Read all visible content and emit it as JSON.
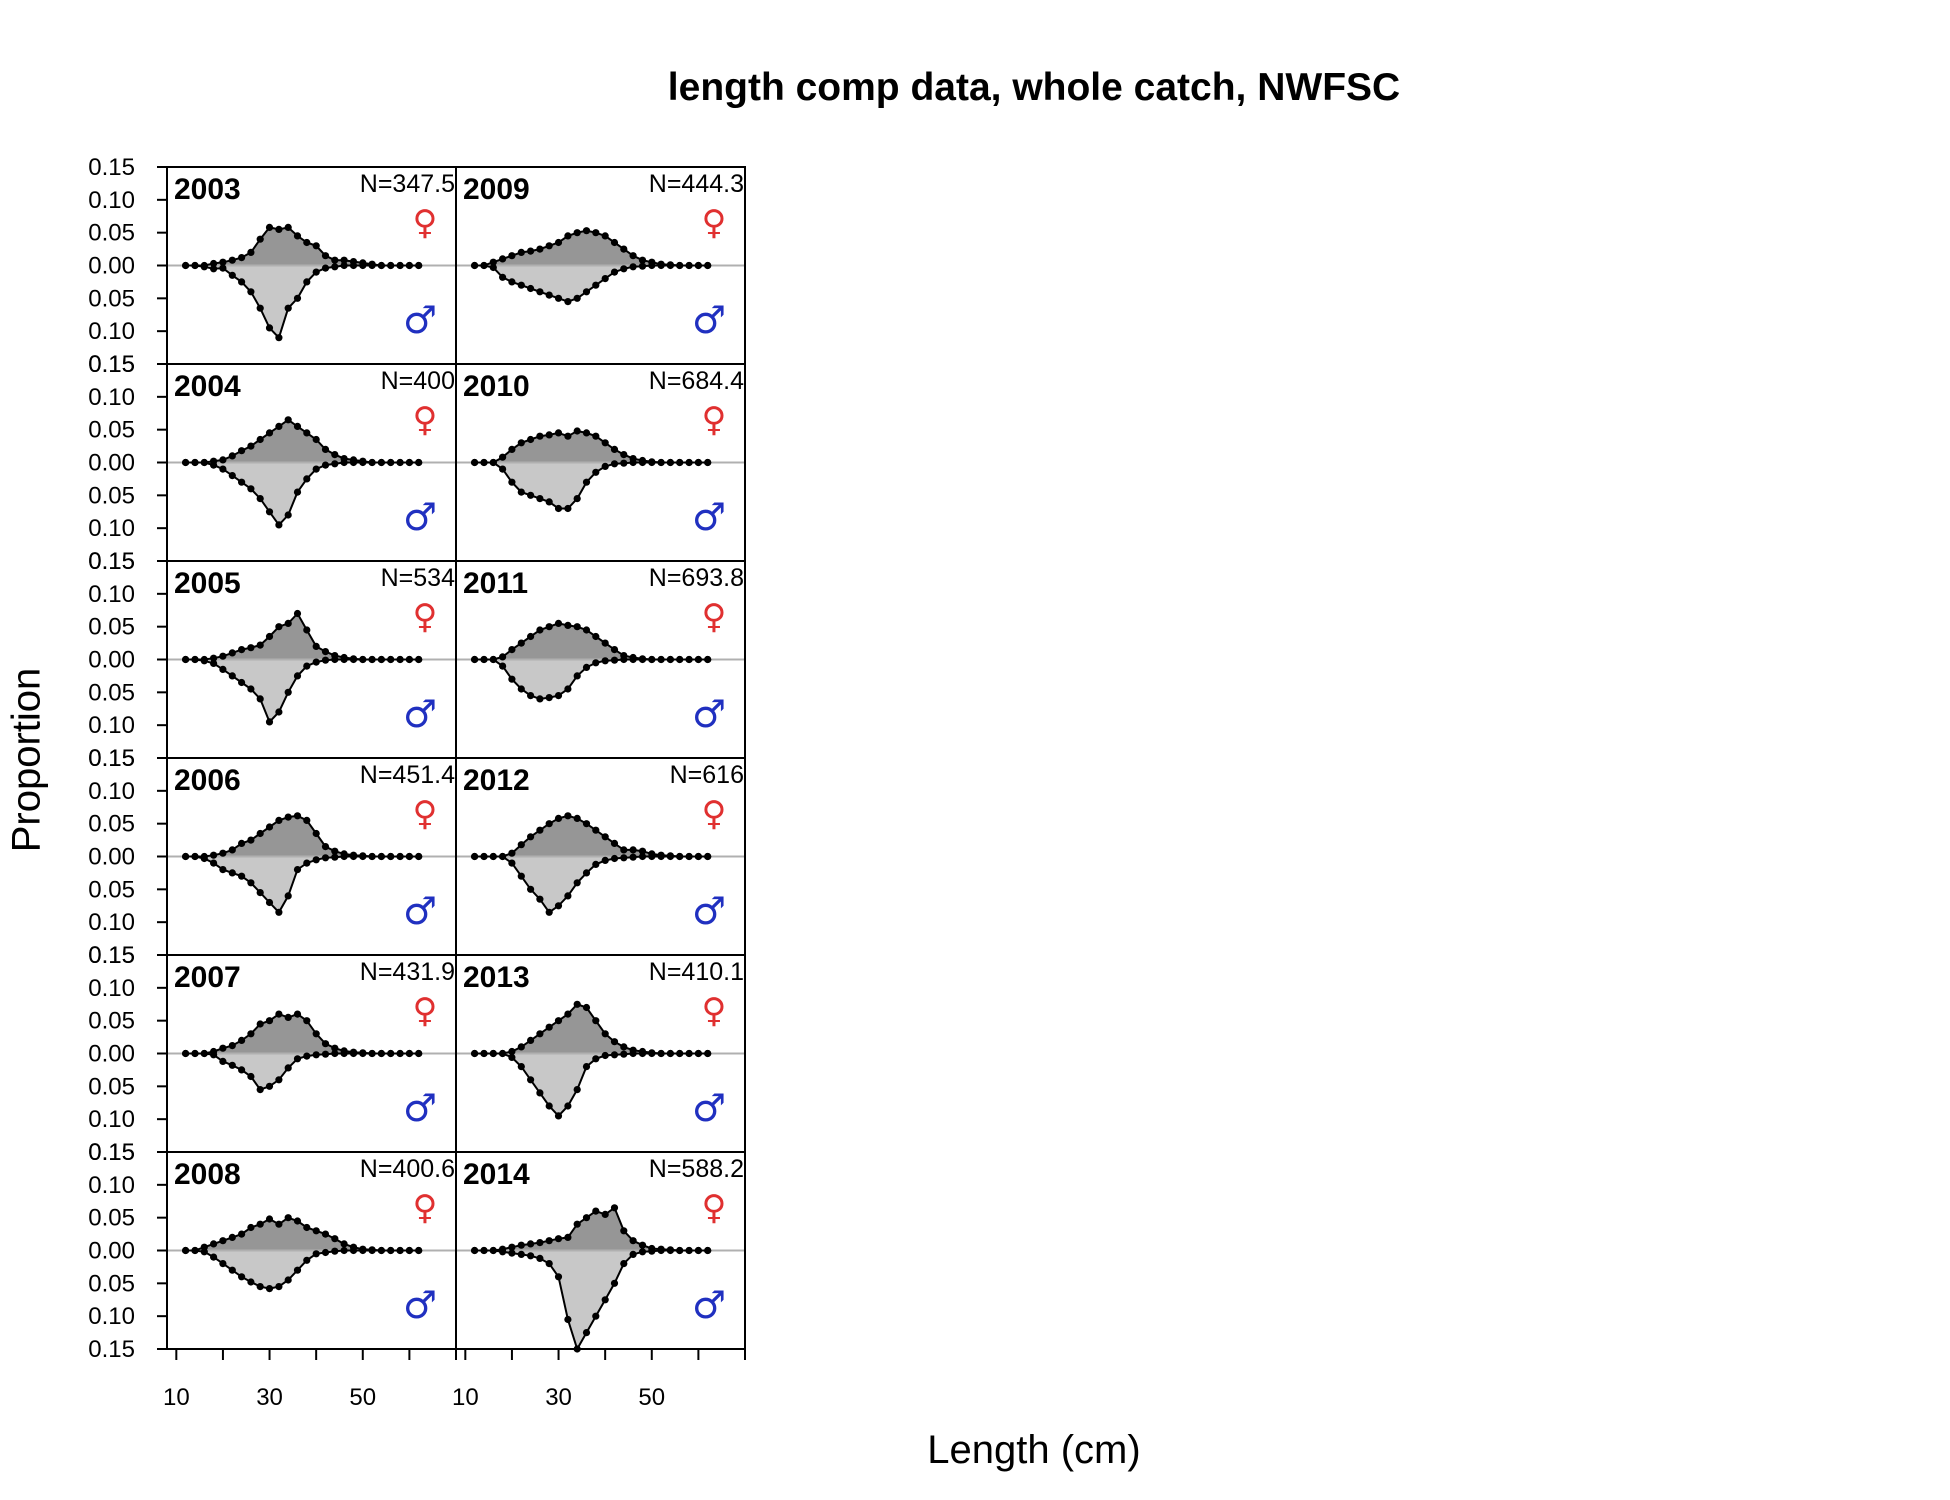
{
  "chart_data": {
    "type": "area",
    "title": "length comp data, whole catch, NWFSC",
    "xlabel": "Length (cm)",
    "ylabel": "Proportion",
    "x_axis": {
      "range": [
        8,
        70
      ],
      "ticks": [
        10,
        20,
        30,
        40,
        50,
        60,
        70
      ],
      "tick_labels": [
        "10",
        "30",
        "50"
      ]
    },
    "y_axis": {
      "range": [
        -0.15,
        0.15
      ],
      "ticks": [
        -0.15,
        -0.1,
        -0.05,
        0.0,
        0.05,
        0.1,
        0.15
      ],
      "tick_labels": [
        "0.15",
        "0.10",
        "0.05",
        "0.00",
        "0.05",
        "0.10",
        "0.15"
      ]
    },
    "sex_symbols": {
      "female": "♀",
      "male": "♂"
    },
    "colors": {
      "female_fill": "#969696",
      "male_fill": "#c8c8c8",
      "female_symbol": "#e03030",
      "male_symbol": "#2030c0",
      "zero_line": "#b0b0b0"
    },
    "x": [
      12,
      14,
      16,
      18,
      20,
      22,
      24,
      26,
      28,
      30,
      32,
      34,
      36,
      38,
      40,
      42,
      44,
      46,
      48,
      50,
      52,
      54,
      56,
      58,
      60,
      62
    ],
    "panels": [
      {
        "year": "2003",
        "n_label": "N=347.5",
        "female": [
          0,
          0,
          0,
          0.003,
          0.005,
          0.008,
          0.012,
          0.02,
          0.04,
          0.058,
          0.055,
          0.058,
          0.045,
          0.035,
          0.03,
          0.015,
          0.008,
          0.008,
          0.006,
          0.004,
          0.002,
          0,
          0,
          0,
          0,
          0
        ],
        "male": [
          0,
          0,
          0.002,
          0.005,
          0.004,
          0.015,
          0.025,
          0.04,
          0.065,
          0.095,
          0.11,
          0.065,
          0.05,
          0.025,
          0.01,
          0.004,
          0.002,
          0,
          0,
          0,
          0,
          0,
          0,
          0,
          0,
          0
        ]
      },
      {
        "year": "2009",
        "n_label": "N=444.3",
        "female": [
          0,
          0,
          0.005,
          0.01,
          0.015,
          0.02,
          0.022,
          0.025,
          0.03,
          0.035,
          0.045,
          0.05,
          0.053,
          0.05,
          0.045,
          0.035,
          0.025,
          0.015,
          0.008,
          0.005,
          0.002,
          0.001,
          0,
          0,
          0,
          0
        ],
        "male": [
          0,
          0,
          0.003,
          0.018,
          0.025,
          0.03,
          0.035,
          0.04,
          0.045,
          0.05,
          0.055,
          0.05,
          0.04,
          0.03,
          0.02,
          0.01,
          0.005,
          0.002,
          0.001,
          0,
          0,
          0,
          0,
          0,
          0,
          0
        ]
      },
      {
        "year": "2004",
        "n_label": "N=400",
        "female": [
          0,
          0,
          0,
          0.002,
          0.004,
          0.01,
          0.018,
          0.025,
          0.035,
          0.045,
          0.055,
          0.065,
          0.055,
          0.045,
          0.035,
          0.02,
          0.012,
          0.006,
          0.004,
          0.002,
          0,
          0,
          0,
          0,
          0,
          0
        ],
        "male": [
          0,
          0,
          0,
          0.004,
          0.01,
          0.02,
          0.03,
          0.04,
          0.055,
          0.075,
          0.095,
          0.08,
          0.045,
          0.025,
          0.01,
          0.004,
          0.002,
          0,
          0,
          0,
          0,
          0,
          0,
          0,
          0,
          0
        ]
      },
      {
        "year": "2010",
        "n_label": "N=684.4",
        "female": [
          0,
          0,
          0,
          0.008,
          0.02,
          0.03,
          0.035,
          0.04,
          0.042,
          0.045,
          0.04,
          0.048,
          0.045,
          0.04,
          0.03,
          0.02,
          0.012,
          0.006,
          0.003,
          0.001,
          0,
          0,
          0,
          0,
          0,
          0
        ],
        "male": [
          0,
          0,
          0,
          0.01,
          0.03,
          0.045,
          0.05,
          0.055,
          0.06,
          0.07,
          0.07,
          0.055,
          0.03,
          0.015,
          0.006,
          0.002,
          0.001,
          0,
          0,
          0,
          0,
          0,
          0,
          0,
          0,
          0
        ]
      },
      {
        "year": "2005",
        "n_label": "N=534",
        "female": [
          0,
          0,
          0,
          0.002,
          0.005,
          0.01,
          0.015,
          0.018,
          0.022,
          0.035,
          0.05,
          0.055,
          0.07,
          0.045,
          0.02,
          0.012,
          0.006,
          0.003,
          0.001,
          0,
          0,
          0,
          0,
          0,
          0,
          0
        ],
        "male": [
          0,
          0,
          0.002,
          0.006,
          0.015,
          0.025,
          0.035,
          0.045,
          0.06,
          0.095,
          0.08,
          0.05,
          0.025,
          0.01,
          0.004,
          0.001,
          0,
          0,
          0,
          0,
          0,
          0,
          0,
          0,
          0,
          0
        ]
      },
      {
        "year": "2011",
        "n_label": "N=693.8",
        "female": [
          0,
          0,
          0,
          0.004,
          0.015,
          0.025,
          0.035,
          0.045,
          0.05,
          0.055,
          0.052,
          0.05,
          0.045,
          0.035,
          0.025,
          0.015,
          0.006,
          0.003,
          0.001,
          0,
          0,
          0,
          0,
          0,
          0,
          0
        ],
        "male": [
          0,
          0,
          0,
          0.01,
          0.03,
          0.045,
          0.055,
          0.06,
          0.058,
          0.055,
          0.045,
          0.025,
          0.012,
          0.005,
          0.002,
          0.001,
          0,
          0,
          0,
          0,
          0,
          0,
          0,
          0,
          0,
          0
        ]
      },
      {
        "year": "2006",
        "n_label": "N=451.4",
        "female": [
          0,
          0,
          0,
          0.002,
          0.005,
          0.01,
          0.02,
          0.025,
          0.035,
          0.045,
          0.055,
          0.06,
          0.062,
          0.055,
          0.035,
          0.015,
          0.008,
          0.004,
          0.002,
          0.001,
          0,
          0,
          0,
          0,
          0,
          0
        ],
        "male": [
          0,
          0,
          0.003,
          0.01,
          0.02,
          0.025,
          0.03,
          0.04,
          0.055,
          0.07,
          0.085,
          0.06,
          0.02,
          0.01,
          0.005,
          0.002,
          0.001,
          0,
          0,
          0,
          0,
          0,
          0,
          0,
          0,
          0
        ]
      },
      {
        "year": "2012",
        "n_label": "N=616",
        "female": [
          0,
          0,
          0,
          0,
          0.005,
          0.018,
          0.03,
          0.04,
          0.05,
          0.058,
          0.062,
          0.058,
          0.05,
          0.04,
          0.03,
          0.02,
          0.01,
          0.01,
          0.008,
          0.004,
          0.002,
          0.001,
          0,
          0,
          0,
          0
        ],
        "male": [
          0,
          0,
          0,
          0,
          0.01,
          0.03,
          0.05,
          0.065,
          0.085,
          0.075,
          0.06,
          0.04,
          0.025,
          0.012,
          0.006,
          0.003,
          0.002,
          0.001,
          0,
          0,
          0,
          0,
          0,
          0,
          0,
          0
        ]
      },
      {
        "year": "2007",
        "n_label": "N=431.9",
        "female": [
          0,
          0,
          0,
          0.003,
          0.008,
          0.012,
          0.02,
          0.03,
          0.045,
          0.05,
          0.06,
          0.055,
          0.06,
          0.05,
          0.03,
          0.015,
          0.008,
          0.004,
          0.002,
          0.001,
          0,
          0,
          0,
          0,
          0,
          0
        ],
        "male": [
          0,
          0,
          0,
          0.002,
          0.012,
          0.018,
          0.025,
          0.035,
          0.055,
          0.05,
          0.04,
          0.022,
          0.008,
          0.004,
          0.002,
          0.001,
          0,
          0,
          0,
          0,
          0,
          0,
          0,
          0,
          0,
          0
        ]
      },
      {
        "year": "2013",
        "n_label": "N=410.1",
        "female": [
          0,
          0,
          0,
          0,
          0.003,
          0.01,
          0.02,
          0.03,
          0.04,
          0.05,
          0.06,
          0.075,
          0.07,
          0.05,
          0.03,
          0.018,
          0.01,
          0.005,
          0.003,
          0.001,
          0,
          0,
          0,
          0,
          0,
          0
        ],
        "male": [
          0,
          0,
          0,
          0,
          0.006,
          0.02,
          0.04,
          0.06,
          0.08,
          0.095,
          0.08,
          0.055,
          0.02,
          0.008,
          0.003,
          0.002,
          0.001,
          0,
          0,
          0,
          0,
          0,
          0,
          0,
          0,
          0
        ]
      },
      {
        "year": "2008",
        "n_label": "N=400.6",
        "female": [
          0,
          0,
          0.005,
          0.01,
          0.015,
          0.02,
          0.025,
          0.035,
          0.04,
          0.048,
          0.04,
          0.05,
          0.045,
          0.035,
          0.03,
          0.025,
          0.018,
          0.01,
          0.005,
          0.002,
          0.001,
          0,
          0,
          0,
          0,
          0
        ],
        "male": [
          0,
          0,
          0.002,
          0.01,
          0.02,
          0.03,
          0.04,
          0.048,
          0.055,
          0.058,
          0.055,
          0.045,
          0.03,
          0.015,
          0.005,
          0.003,
          0.001,
          0,
          0,
          0,
          0,
          0,
          0,
          0,
          0,
          0
        ]
      },
      {
        "year": "2014",
        "n_label": "N=588.2",
        "female": [
          0,
          0,
          0,
          0.002,
          0.005,
          0.008,
          0.01,
          0.012,
          0.015,
          0.018,
          0.02,
          0.04,
          0.05,
          0.06,
          0.055,
          0.065,
          0.03,
          0.015,
          0.008,
          0.003,
          0.002,
          0.001,
          0,
          0,
          0,
          0
        ],
        "male": [
          0,
          0,
          0,
          0.002,
          0.004,
          0.006,
          0.008,
          0.012,
          0.02,
          0.04,
          0.105,
          0.15,
          0.125,
          0.1,
          0.075,
          0.05,
          0.02,
          0.006,
          0.002,
          0.001,
          0,
          0,
          0,
          0,
          0,
          0
        ]
      }
    ]
  }
}
